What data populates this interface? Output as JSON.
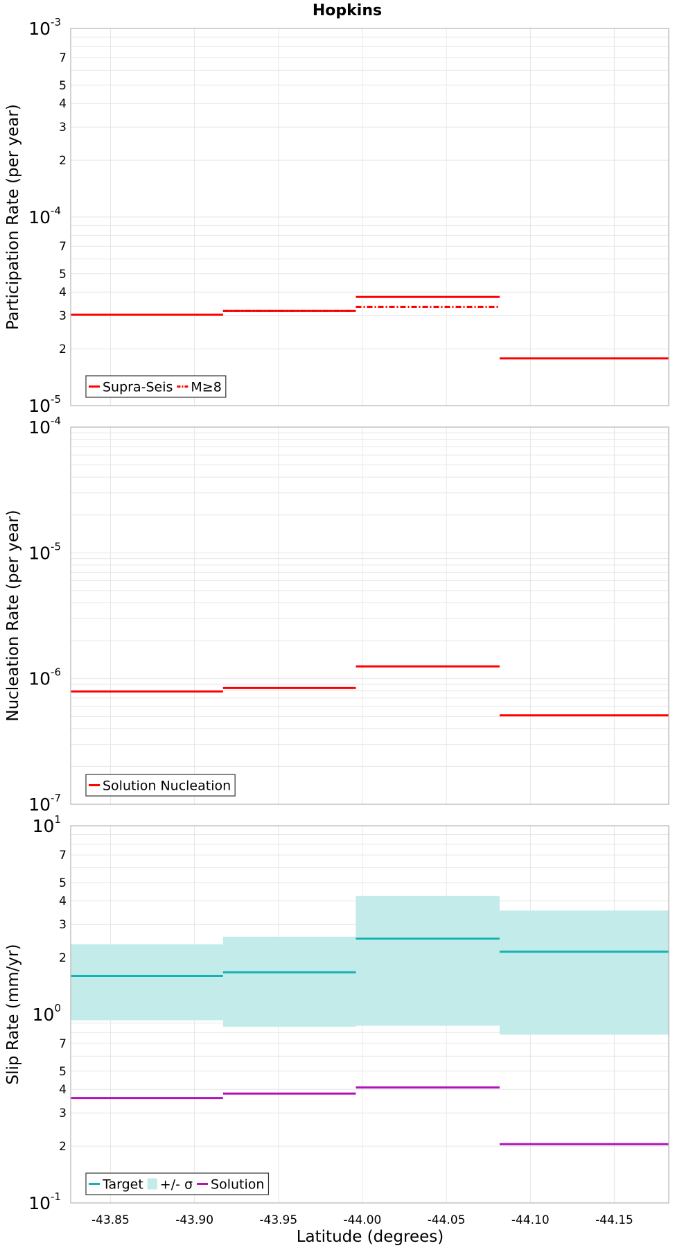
{
  "title": "Hopkins",
  "x_axis": {
    "label": "Latitude (degrees)",
    "ticks": [
      -43.85,
      -43.9,
      -43.95,
      -44.0,
      -44.05,
      -44.1,
      -44.15
    ],
    "tick_labels": [
      "-43.85",
      "-43.90",
      "-43.95",
      "-44.00",
      "-44.05",
      "-44.10",
      "-44.15"
    ]
  },
  "colors": {
    "red": "#ff0000",
    "teal": "#14b2b2",
    "band": "#c3ebea",
    "magenta": "#b213b8",
    "grid": "#e6e6e6",
    "frame": "#b3b3b3"
  },
  "chart_data": [
    {
      "type": "line",
      "ylabel": "Participation Rate (per year)",
      "xlabel": "",
      "yscale": "log",
      "xlim": [
        -43.8263,
        -44.1824
      ],
      "ylim": [
        1e-05,
        0.001
      ],
      "grid": true,
      "legend_position": "bottom-left",
      "legend": [
        {
          "label": "Supra-Seis",
          "style": "solid"
        },
        {
          "label": "M≥8",
          "style": "dash-dot"
        }
      ],
      "series": [
        {
          "name": "Supra-Seis",
          "style": "solid",
          "color": "#ff0000",
          "segments": [
            {
              "x": [
                -43.8263,
                -43.917
              ],
              "y": 3.03e-05
            },
            {
              "x": [
                -43.917,
                -43.9961
              ],
              "y": 3.18e-05
            },
            {
              "x": [
                -43.9961,
                -44.0817
              ],
              "y": 3.77e-05
            },
            {
              "x": [
                -44.0817,
                -44.1824
              ],
              "y": 1.78e-05
            }
          ]
        },
        {
          "name": "M≥8",
          "style": "dash-dot",
          "color": "#ff0000",
          "segments": [
            {
              "x": [
                -43.8263,
                -43.917
              ],
              "y": 3.03e-05
            },
            {
              "x": [
                -43.917,
                -43.9961
              ],
              "y": 3.18e-05
            },
            {
              "x": [
                -43.9961,
                -44.0817
              ],
              "y": 3.34e-05
            }
          ]
        }
      ]
    },
    {
      "type": "line",
      "ylabel": "Nucleation Rate (per year)",
      "xlabel": "",
      "yscale": "log",
      "xlim": [
        -43.8263,
        -44.1824
      ],
      "ylim": [
        1e-07,
        0.0001
      ],
      "grid": true,
      "legend_position": "bottom-left",
      "legend": [
        {
          "label": "Solution Nucleation",
          "style": "solid"
        }
      ],
      "series": [
        {
          "name": "Solution Nucleation",
          "style": "solid",
          "color": "#ff0000",
          "segments": [
            {
              "x": [
                -43.8263,
                -43.917
              ],
              "y": 7.9e-07
            },
            {
              "x": [
                -43.917,
                -43.9961
              ],
              "y": 8.4e-07
            },
            {
              "x": [
                -43.9961,
                -44.0817
              ],
              "y": 1.25e-06
            },
            {
              "x": [
                -44.0817,
                -44.1824
              ],
              "y": 5.1e-07
            }
          ]
        }
      ]
    },
    {
      "type": "line",
      "ylabel": "Slip Rate (mm/yr)",
      "xlabel": "Latitude (degrees)",
      "yscale": "log",
      "xlim": [
        -43.8263,
        -44.1824
      ],
      "ylim": [
        0.1,
        10
      ],
      "grid": true,
      "legend_position": "bottom-left",
      "legend": [
        {
          "label": "Target",
          "style": "solid"
        },
        {
          "label": "+/- σ",
          "style": "band"
        },
        {
          "label": "Solution",
          "style": "solid"
        }
      ],
      "bands": [
        {
          "name": "+/- σ",
          "color": "#c3ebea",
          "segments": [
            {
              "x": [
                -43.8263,
                -43.917
              ],
              "low": 0.93,
              "high": 2.35
            },
            {
              "x": [
                -43.917,
                -43.9961
              ],
              "low": 0.86,
              "high": 2.58
            },
            {
              "x": [
                -43.9961,
                -44.0817
              ],
              "low": 0.87,
              "high": 4.25
            },
            {
              "x": [
                -44.0817,
                -44.1824
              ],
              "low": 0.78,
              "high": 3.55
            }
          ]
        }
      ],
      "series": [
        {
          "name": "Target",
          "style": "solid",
          "color": "#14b2b2",
          "segments": [
            {
              "x": [
                -43.8263,
                -43.917
              ],
              "y": 1.6
            },
            {
              "x": [
                -43.917,
                -43.9961
              ],
              "y": 1.67
            },
            {
              "x": [
                -43.9961,
                -44.0817
              ],
              "y": 2.52
            },
            {
              "x": [
                -44.0817,
                -44.1824
              ],
              "y": 2.15
            }
          ]
        },
        {
          "name": "Solution",
          "style": "solid",
          "color": "#b213b8",
          "segments": [
            {
              "x": [
                -43.8263,
                -43.917
              ],
              "y": 0.36
            },
            {
              "x": [
                -43.917,
                -43.9961
              ],
              "y": 0.38
            },
            {
              "x": [
                -43.9961,
                -44.0817
              ],
              "y": 0.41
            },
            {
              "x": [
                -44.0817,
                -44.1824
              ],
              "y": 0.205
            }
          ]
        }
      ]
    }
  ]
}
